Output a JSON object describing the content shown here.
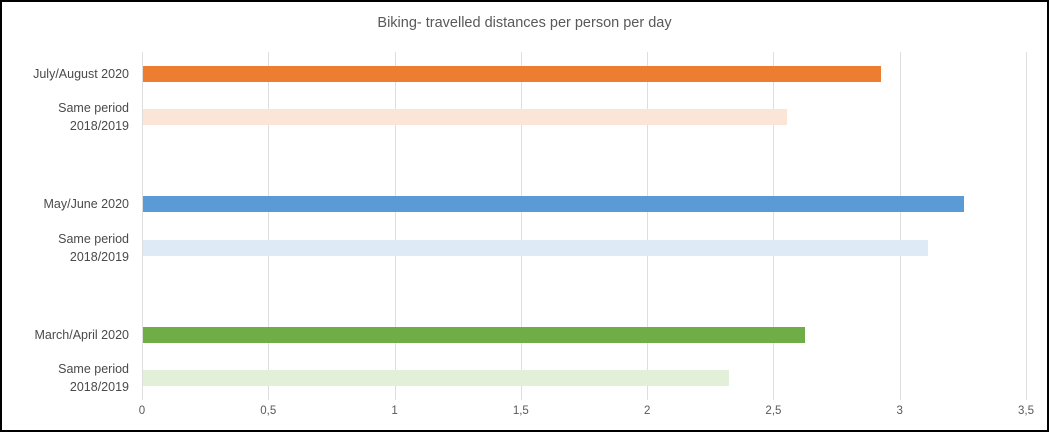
{
  "chart_data": {
    "type": "bar",
    "orientation": "horizontal",
    "title": "Biking- travelled distances per person per day",
    "xlabel": "",
    "ylabel": "",
    "xlim": [
      0,
      3.5
    ],
    "grid": true,
    "legend": "none",
    "x_ticks": [
      {
        "label": "0",
        "value": 0
      },
      {
        "label": "0,5",
        "value": 0.5
      },
      {
        "label": "1",
        "value": 1
      },
      {
        "label": "1,5",
        "value": 1.5
      },
      {
        "label": "2",
        "value": 2
      },
      {
        "label": "2,5",
        "value": 2.5
      },
      {
        "label": "3",
        "value": 3
      },
      {
        "label": "3,5",
        "value": 3.5
      }
    ],
    "n_rows": 8,
    "rows": [
      {
        "name": "july-august-2020",
        "label": [
          "July/August 2020"
        ],
        "value": 2.92,
        "color": "#ED7D31",
        "row": 0
      },
      {
        "name": "same-period-summer",
        "label": [
          "Same period",
          "2018/2019"
        ],
        "value": 2.55,
        "color": "#FBE5D6",
        "row": 1
      },
      {
        "name": "may-june-2020",
        "label": [
          "May/June 2020"
        ],
        "value": 3.25,
        "color": "#5B9BD5",
        "row": 3
      },
      {
        "name": "same-period-spring",
        "label": [
          "Same period",
          "2018/2019"
        ],
        "value": 3.11,
        "color": "#DEEAF6",
        "row": 4
      },
      {
        "name": "march-april-2020",
        "label": [
          "March/April  2020"
        ],
        "value": 2.62,
        "color": "#70AD47",
        "row": 6
      },
      {
        "name": "same-period-early-spring",
        "label": [
          "Same period",
          "2018/2019"
        ],
        "value": 2.32,
        "color": "#E2EFD9",
        "row": 7
      }
    ],
    "colors": {
      "gridline": "#dedede",
      "title_text": "#595959",
      "axis_text": "#595959",
      "label_text": "#4a4a4a",
      "frame_border": "#000000",
      "series_2020": [
        "#ED7D31",
        "#5B9BD5",
        "#70AD47"
      ],
      "series_2018_2019": [
        "#FBE5D6",
        "#DEEAF6",
        "#E2EFD9"
      ]
    }
  }
}
